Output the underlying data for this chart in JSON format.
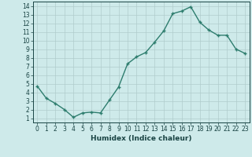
{
  "x": [
    0,
    1,
    2,
    3,
    4,
    5,
    6,
    7,
    8,
    9,
    10,
    11,
    12,
    13,
    14,
    15,
    16,
    17,
    18,
    19,
    20,
    21,
    22,
    23
  ],
  "y": [
    4.7,
    3.3,
    2.7,
    2.0,
    1.1,
    1.6,
    1.7,
    1.6,
    3.1,
    4.6,
    7.3,
    8.1,
    8.6,
    9.8,
    11.1,
    13.1,
    13.4,
    13.9,
    12.1,
    11.2,
    10.6,
    10.6,
    9.0,
    8.5
  ],
  "line_color": "#2e7d6e",
  "marker": "+",
  "marker_size": 3.5,
  "line_width": 1.0,
  "bg_color": "#ceeaea",
  "grid_color": "#b0cccc",
  "xlabel": "Humidex (Indice chaleur)",
  "xlabel_fontsize": 6.5,
  "xlabel_color": "#1a4444",
  "tick_fontsize": 5.5,
  "ylim": [
    0.5,
    14.5
  ],
  "xlim": [
    -0.5,
    23.5
  ],
  "yticks": [
    1,
    2,
    3,
    4,
    5,
    6,
    7,
    8,
    9,
    10,
    11,
    12,
    13,
    14
  ],
  "xticks": [
    0,
    1,
    2,
    3,
    4,
    5,
    6,
    7,
    8,
    9,
    10,
    11,
    12,
    13,
    14,
    15,
    16,
    17,
    18,
    19,
    20,
    21,
    22,
    23
  ],
  "tick_color": "#1a4444",
  "spine_color": "#1a4444"
}
